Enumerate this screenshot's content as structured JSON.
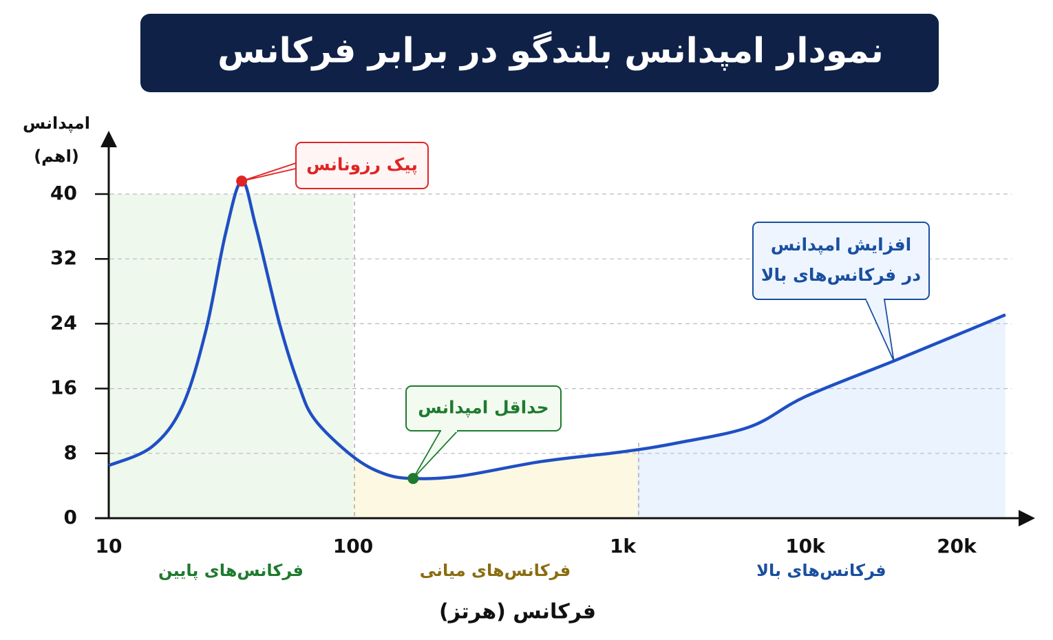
{
  "chart_data": {
    "type": "line",
    "title": "نمودار امپدانس بلندگو در برابر فرکانس",
    "ylabel": [
      "امپدانس",
      "(اهم)"
    ],
    "xlabel": "فرکانس (هرتز)",
    "x": [
      10,
      15,
      20,
      25,
      30,
      35,
      40,
      50,
      60,
      70,
      100,
      130,
      167,
      250,
      500,
      1000,
      2000,
      5000,
      10000,
      15000,
      20000,
      25000
    ],
    "values": [
      6.5,
      8.8,
      13.8,
      23.2,
      35,
      41.6,
      36,
      24,
      16.4,
      12.1,
      7.6,
      5.5,
      4.9,
      5.2,
      7.0,
      8.2,
      9.3,
      11.3,
      15.0,
      19.4,
      22.6,
      25.1
    ],
    "color": "#1f4fc4",
    "xlim": [
      10,
      25000
    ],
    "xticks": [
      10,
      100,
      {
        "value": 1000,
        "label": "1k"
      },
      {
        "value": 10000,
        "label": "10k"
      },
      {
        "value": 20000,
        "label": "20k"
      }
    ],
    "ylim": [
      0,
      47
    ],
    "yticks": [
      0,
      8,
      16,
      24,
      32,
      40
    ],
    "grid": true,
    "regions": [
      {
        "label": "فرکانس‌های پایین",
        "from": 10,
        "to": 100,
        "color": "#1e7a2e",
        "fill": "#eef8ec"
      },
      {
        "label": "فرکانس‌های میانی",
        "from": 100,
        "to": 1200,
        "color": "#8a6d10",
        "fill": "#fdf8e1"
      },
      {
        "label": "فرکانس‌های بالا",
        "from": 1200,
        "to": 25000,
        "color": "#1a4fa0",
        "fill": "#eaf3fe"
      }
    ],
    "annotations": [
      {
        "lines": [
          "پیک رزونانس"
        ],
        "x": 35,
        "y": 41.6,
        "color": "#e02424",
        "fill": "#fff5f5"
      },
      {
        "lines": [
          "حداقل امپدانس"
        ],
        "x": 167,
        "y": 4.9,
        "color": "#1e7a2e",
        "fill": "#f3fbf1"
      },
      {
        "lines": [
          "افزایش امپدانس",
          "در فرکانس‌های بالا"
        ],
        "x": 15000,
        "y": 19.4,
        "color": "#1a4fa0",
        "fill": "#eef5ff"
      }
    ]
  }
}
